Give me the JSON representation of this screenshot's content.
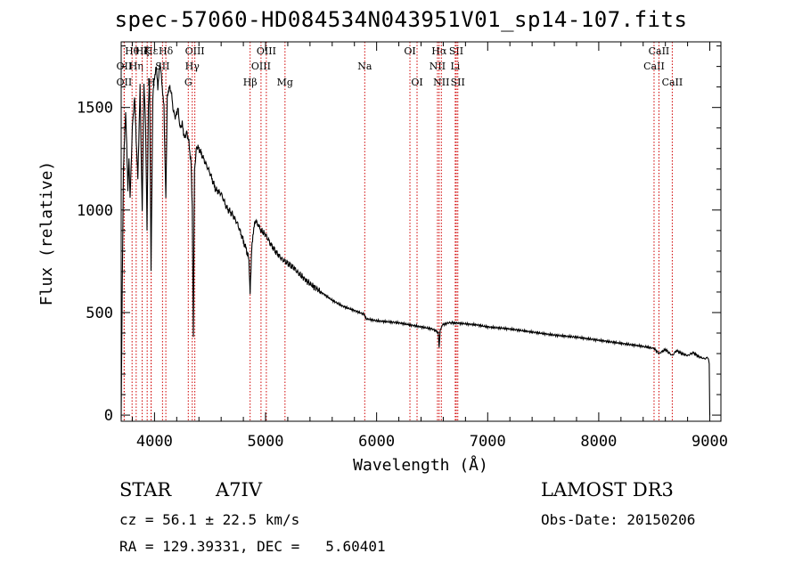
{
  "chart_data": {
    "type": "line",
    "title": "spec-57060-HD084534N043951V01_sp14-107.fits",
    "xlabel": "Wavelength (Å)",
    "ylabel": "Flux (relative)",
    "xlim": [
      3700,
      9100
    ],
    "ylim": [
      -30,
      1820
    ],
    "xticks": [
      4000,
      5000,
      6000,
      7000,
      8000,
      9000
    ],
    "yticks": [
      0,
      500,
      1000,
      1500
    ],
    "series": [
      {
        "name": "flux",
        "x": [
          3700,
          3710,
          3720,
          3730,
          3740,
          3750,
          3760,
          3770,
          3780,
          3800,
          3820,
          3835,
          3850,
          3870,
          3889,
          3905,
          3920,
          3933,
          3945,
          3955,
          3969,
          3985,
          4000,
          4015,
          4030,
          4050,
          4070,
          4085,
          4102,
          4115,
          4130,
          4150,
          4170,
          4190,
          4210,
          4230,
          4250,
          4270,
          4290,
          4310,
          4330,
          4340,
          4350,
          4360,
          4380,
          4400,
          4450,
          4500,
          4550,
          4600,
          4650,
          4700,
          4750,
          4800,
          4830,
          4850,
          4861,
          4875,
          4890,
          4910,
          4930,
          4960,
          5000,
          5050,
          5100,
          5150,
          5200,
          5250,
          5300,
          5400,
          5500,
          5600,
          5700,
          5800,
          5893,
          5900,
          6000,
          6100,
          6200,
          6300,
          6400,
          6500,
          6540,
          6555,
          6563,
          6572,
          6590,
          6650,
          6700,
          6800,
          6900,
          7000,
          7200,
          7400,
          7600,
          7800,
          8000,
          8200,
          8400,
          8498,
          8542,
          8600,
          8662,
          8700,
          8750,
          8800,
          8850,
          8900,
          8950,
          8980,
          8990,
          8995,
          9000
        ],
        "values": [
          0,
          650,
          1200,
          1350,
          1480,
          1320,
          1100,
          1250,
          1050,
          1400,
          1550,
          1350,
          1150,
          1600,
          1000,
          1620,
          1400,
          900,
          1500,
          1650,
          700,
          1550,
          1650,
          1700,
          1600,
          1720,
          1600,
          1500,
          1050,
          1550,
          1600,
          1580,
          1480,
          1450,
          1500,
          1400,
          1420,
          1350,
          1380,
          1330,
          1220,
          1000,
          380,
          1200,
          1310,
          1300,
          1240,
          1180,
          1100,
          1080,
          1010,
          980,
          930,
          850,
          800,
          760,
          600,
          800,
          900,
          950,
          930,
          900,
          880,
          830,
          790,
          760,
          740,
          720,
          690,
          640,
          600,
          560,
          530,
          510,
          490,
          470,
          460,
          455,
          450,
          440,
          430,
          420,
          410,
          400,
          330,
          410,
          440,
          450,
          450,
          445,
          440,
          430,
          420,
          405,
          390,
          380,
          365,
          350,
          335,
          325,
          300,
          320,
          290,
          315,
          300,
          290,
          305,
          285,
          275,
          280,
          270,
          250,
          0
        ]
      }
    ],
    "line_markers": [
      {
        "name": "OII",
        "wavelength": 3727,
        "row": 2
      },
      {
        "name": "OII",
        "wavelength": 3727,
        "row": 3
      },
      {
        "name": "Hθ",
        "wavelength": 3798,
        "row": 1
      },
      {
        "name": "Hη",
        "wavelength": 3835,
        "row": 2
      },
      {
        "name": "Hζ",
        "wavelength": 3889,
        "row": 1
      },
      {
        "name": "Hε",
        "wavelength": 3970,
        "row": 1
      },
      {
        "name": "K",
        "wavelength": 3934,
        "row": 1
      },
      {
        "name": "H",
        "wavelength": 3969,
        "row": 3
      },
      {
        "name": "SII",
        "wavelength": 4072,
        "row": 2
      },
      {
        "name": "Hδ",
        "wavelength": 4102,
        "row": 1
      },
      {
        "name": "OIII",
        "wavelength": 4363,
        "row": 1
      },
      {
        "name": "Hγ",
        "wavelength": 4340,
        "row": 2
      },
      {
        "name": "G",
        "wavelength": 4304,
        "row": 3
      },
      {
        "name": "Hβ",
        "wavelength": 4861,
        "row": 3
      },
      {
        "name": "OIII",
        "wavelength": 4959,
        "row": 2
      },
      {
        "name": "OIII",
        "wavelength": 5007,
        "row": 1
      },
      {
        "name": "Mg",
        "wavelength": 5175,
        "row": 3
      },
      {
        "name": "Na",
        "wavelength": 5893,
        "row": 2
      },
      {
        "name": "OI",
        "wavelength": 6300,
        "row": 1
      },
      {
        "name": "OI",
        "wavelength": 6364,
        "row": 3
      },
      {
        "name": "NII",
        "wavelength": 6548,
        "row": 2
      },
      {
        "name": "Hα",
        "wavelength": 6563,
        "row": 1
      },
      {
        "name": "NII",
        "wavelength": 6583,
        "row": 3
      },
      {
        "name": "SII",
        "wavelength": 6717,
        "row": 1
      },
      {
        "name": "Li",
        "wavelength": 6708,
        "row": 2
      },
      {
        "name": "SII",
        "wavelength": 6731,
        "row": 3
      },
      {
        "name": "CaII",
        "wavelength": 8498,
        "row": 2
      },
      {
        "name": "CaII",
        "wavelength": 8542,
        "row": 1
      },
      {
        "name": "CaII",
        "wavelength": 8662,
        "row": 3
      }
    ]
  },
  "info": {
    "object_type": "STAR",
    "subclass": "A7IV",
    "survey": "LAMOST DR3",
    "cz": "cz = 56.1 ± 22.5 km/s",
    "obs_date": "Obs-Date: 20150206",
    "radec": "RA = 129.39331, DEC =   5.60401"
  }
}
